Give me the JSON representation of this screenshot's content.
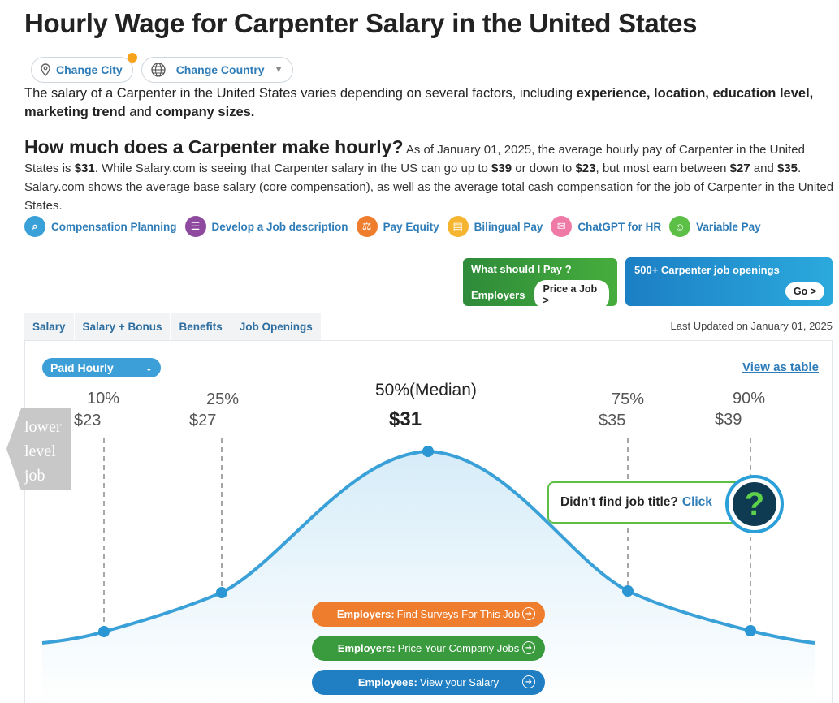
{
  "title": "Hourly Wage for Carpenter Salary in the United States",
  "location": {
    "change_city": "Change City",
    "change_country": "Change Country"
  },
  "intro": {
    "p1": "The salary of a Carpenter in the United States varies depending on several factors, including ",
    "b1": "experience, location, education level, marketing trend",
    "p2": " and ",
    "b2": "company sizes."
  },
  "question": {
    "title": "How much does a Carpenter make hourly?",
    "t1": " As of January 01, 2025, the average hourly pay of Carpenter in the United States is ",
    "v1": "$31",
    "t2": ". While Salary.com is seeing that Carpenter salary in the US can go up to ",
    "v2": "$39",
    "t3": " or down to ",
    "v3": "$23",
    "t4": ", but most earn between ",
    "v4": "$27",
    "t5": " and ",
    "v5": "$35",
    "t6": ". Salary.com shows the average base salary (core compensation), as well as the average total cash compensation for the job of Carpenter in the United States."
  },
  "tools": [
    {
      "label": "Compensation Planning",
      "icon": "document-search-icon",
      "color": "#3aa0d8"
    },
    {
      "label": "Develop a Job description",
      "icon": "clipboard-icon",
      "color": "#8e4a9e"
    },
    {
      "label": "Pay Equity",
      "icon": "balance-icon",
      "color": "#ef7d2e"
    },
    {
      "label": "Bilingual Pay",
      "icon": "chart-icon",
      "color": "#f5b531"
    },
    {
      "label": "ChatGPT for HR",
      "icon": "chat-icon",
      "color": "#ef7aa6"
    },
    {
      "label": "Variable Pay",
      "icon": "people-icon",
      "color": "#5cbf46"
    }
  ],
  "cta_green": {
    "line1": "What should I Pay ?",
    "line2": "Employers",
    "button": "Price a Job >"
  },
  "cta_blue": {
    "line1": "500+ Carpenter job openings",
    "button": "Go >"
  },
  "tabs": [
    "Salary",
    "Salary + Bonus",
    "Benefits",
    "Job Openings"
  ],
  "last_updated": "Last Updated on January 01, 2025",
  "chart": {
    "pay_select": "Paid Hourly",
    "view_table": "View as table",
    "lower_level": [
      "lower",
      "level",
      "job"
    ],
    "p10": {
      "pct": "10%",
      "val": "$23"
    },
    "p25": {
      "pct": "25%",
      "val": "$27"
    },
    "p50": {
      "pct": "50%(Median)",
      "val": "$31"
    },
    "p75": {
      "pct": "75%",
      "val": "$35"
    },
    "p90": {
      "pct": "90%",
      "val": "$39"
    }
  },
  "chart_data": {
    "type": "area",
    "x": [
      23,
      27,
      31,
      35,
      39
    ],
    "labels": [
      "10%",
      "25%",
      "50%(Median)",
      "75%",
      "90%"
    ],
    "values": [
      "$23",
      "$27",
      "$31",
      "$35",
      "$39"
    ]
  },
  "help": {
    "text": "Didn't find job title?",
    "click": "Click"
  },
  "actions": [
    {
      "bold": "Employers:",
      "text": "Find Surveys For This Job",
      "color": "#ef7d2e"
    },
    {
      "bold": "Employers:",
      "text": "Price Your Company Jobs",
      "color": "#3a9a3e"
    },
    {
      "bold": "Employees:",
      "text": "View your Salary",
      "color": "#1f7fc2"
    }
  ]
}
